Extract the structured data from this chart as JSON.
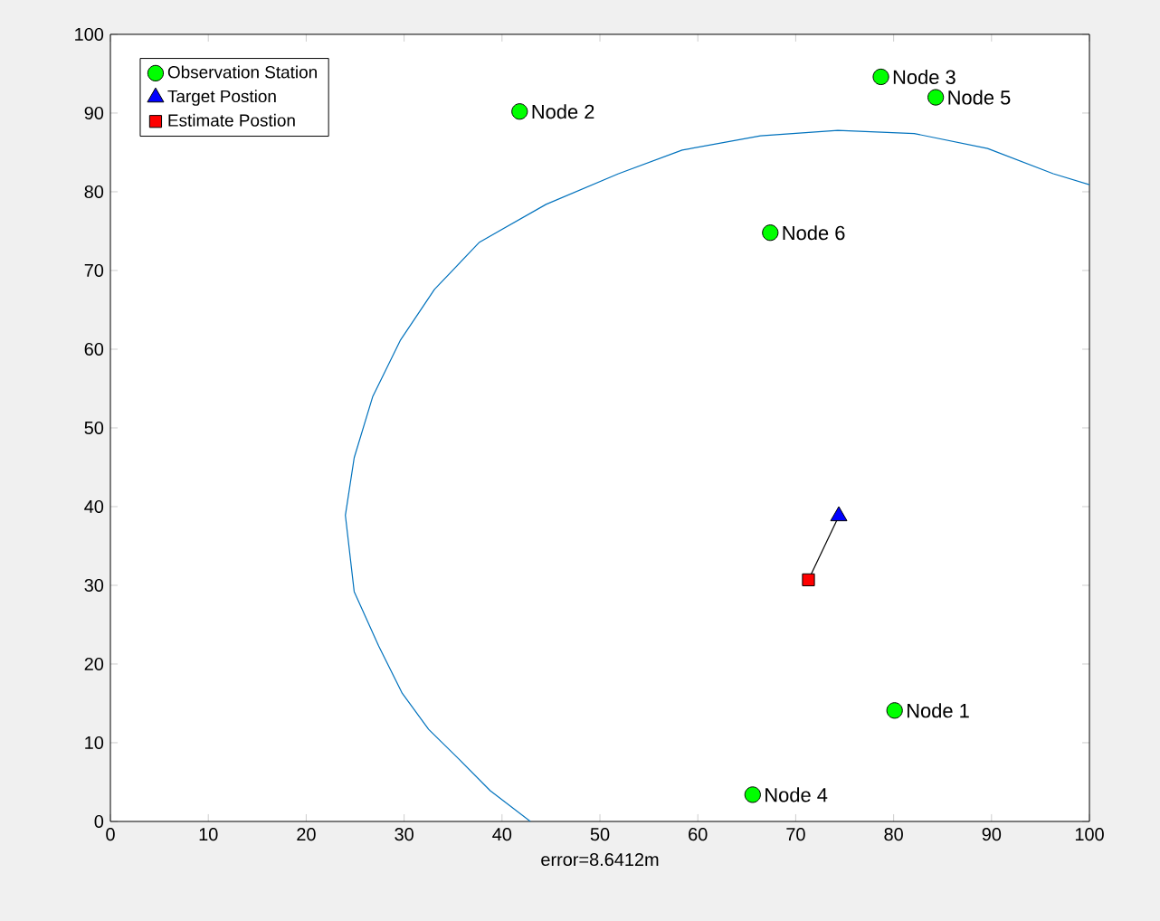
{
  "chart_data": {
    "type": "scatter",
    "xlabel": "error=8.6412m",
    "xlim": [
      0,
      100
    ],
    "ylim": [
      0,
      100
    ],
    "xticks": [
      0,
      10,
      20,
      30,
      40,
      50,
      60,
      70,
      80,
      90,
      100
    ],
    "yticks": [
      0,
      10,
      20,
      30,
      40,
      50,
      60,
      70,
      80,
      90,
      100
    ],
    "legend": "top left",
    "series": [
      {
        "name": "Observation Station",
        "marker": "circle",
        "color": "#00ff00",
        "x": [
          80.1,
          41.8,
          78.7,
          65.6,
          84.3,
          67.4
        ],
        "values": [
          14.1,
          90.2,
          94.6,
          3.4,
          92.0,
          74.8
        ]
      },
      {
        "name": "Target Postion",
        "marker": "triangle",
        "color": "#0000ff",
        "x": [
          74.4
        ],
        "values": [
          38.8
        ]
      },
      {
        "name": "Estimate Postion",
        "marker": "square",
        "color": "#ff0000",
        "x": [
          71.3
        ],
        "values": [
          30.7
        ]
      },
      {
        "type": "line",
        "color": "#000000",
        "x": [
          71.3,
          74.4
        ],
        "values": [
          30.7,
          38.8
        ]
      },
      {
        "type": "line",
        "color": "#0072bd",
        "x": [
          42.9,
          38.8,
          35.7,
          32.5,
          29.8,
          27.4,
          24.9,
          24.0,
          24.9,
          26.8,
          29.6,
          33.1,
          37.7,
          44.5,
          51.9,
          58.4,
          66.4,
          74.3,
          82.1,
          89.6,
          96.3,
          100
        ],
        "values": [
          0,
          3.9,
          7.8,
          11.7,
          16.3,
          22.3,
          29.2,
          38.9,
          46.2,
          54.0,
          61.1,
          67.6,
          73.6,
          78.4,
          82.3,
          85.3,
          87.1,
          87.8,
          87.4,
          85.5,
          82.3,
          80.9
        ]
      }
    ],
    "annotations": [
      {
        "text": "Node 1",
        "x": 80.1,
        "y": 14.1
      },
      {
        "text": "Node 2",
        "x": 41.8,
        "y": 90.2
      },
      {
        "text": "Node 3",
        "x": 78.7,
        "y": 94.6
      },
      {
        "text": "Node 4",
        "x": 65.6,
        "y": 3.4
      },
      {
        "text": "Node 5",
        "x": 84.3,
        "y": 92.0
      },
      {
        "text": "Node 6",
        "x": 67.4,
        "y": 74.8
      }
    ]
  }
}
